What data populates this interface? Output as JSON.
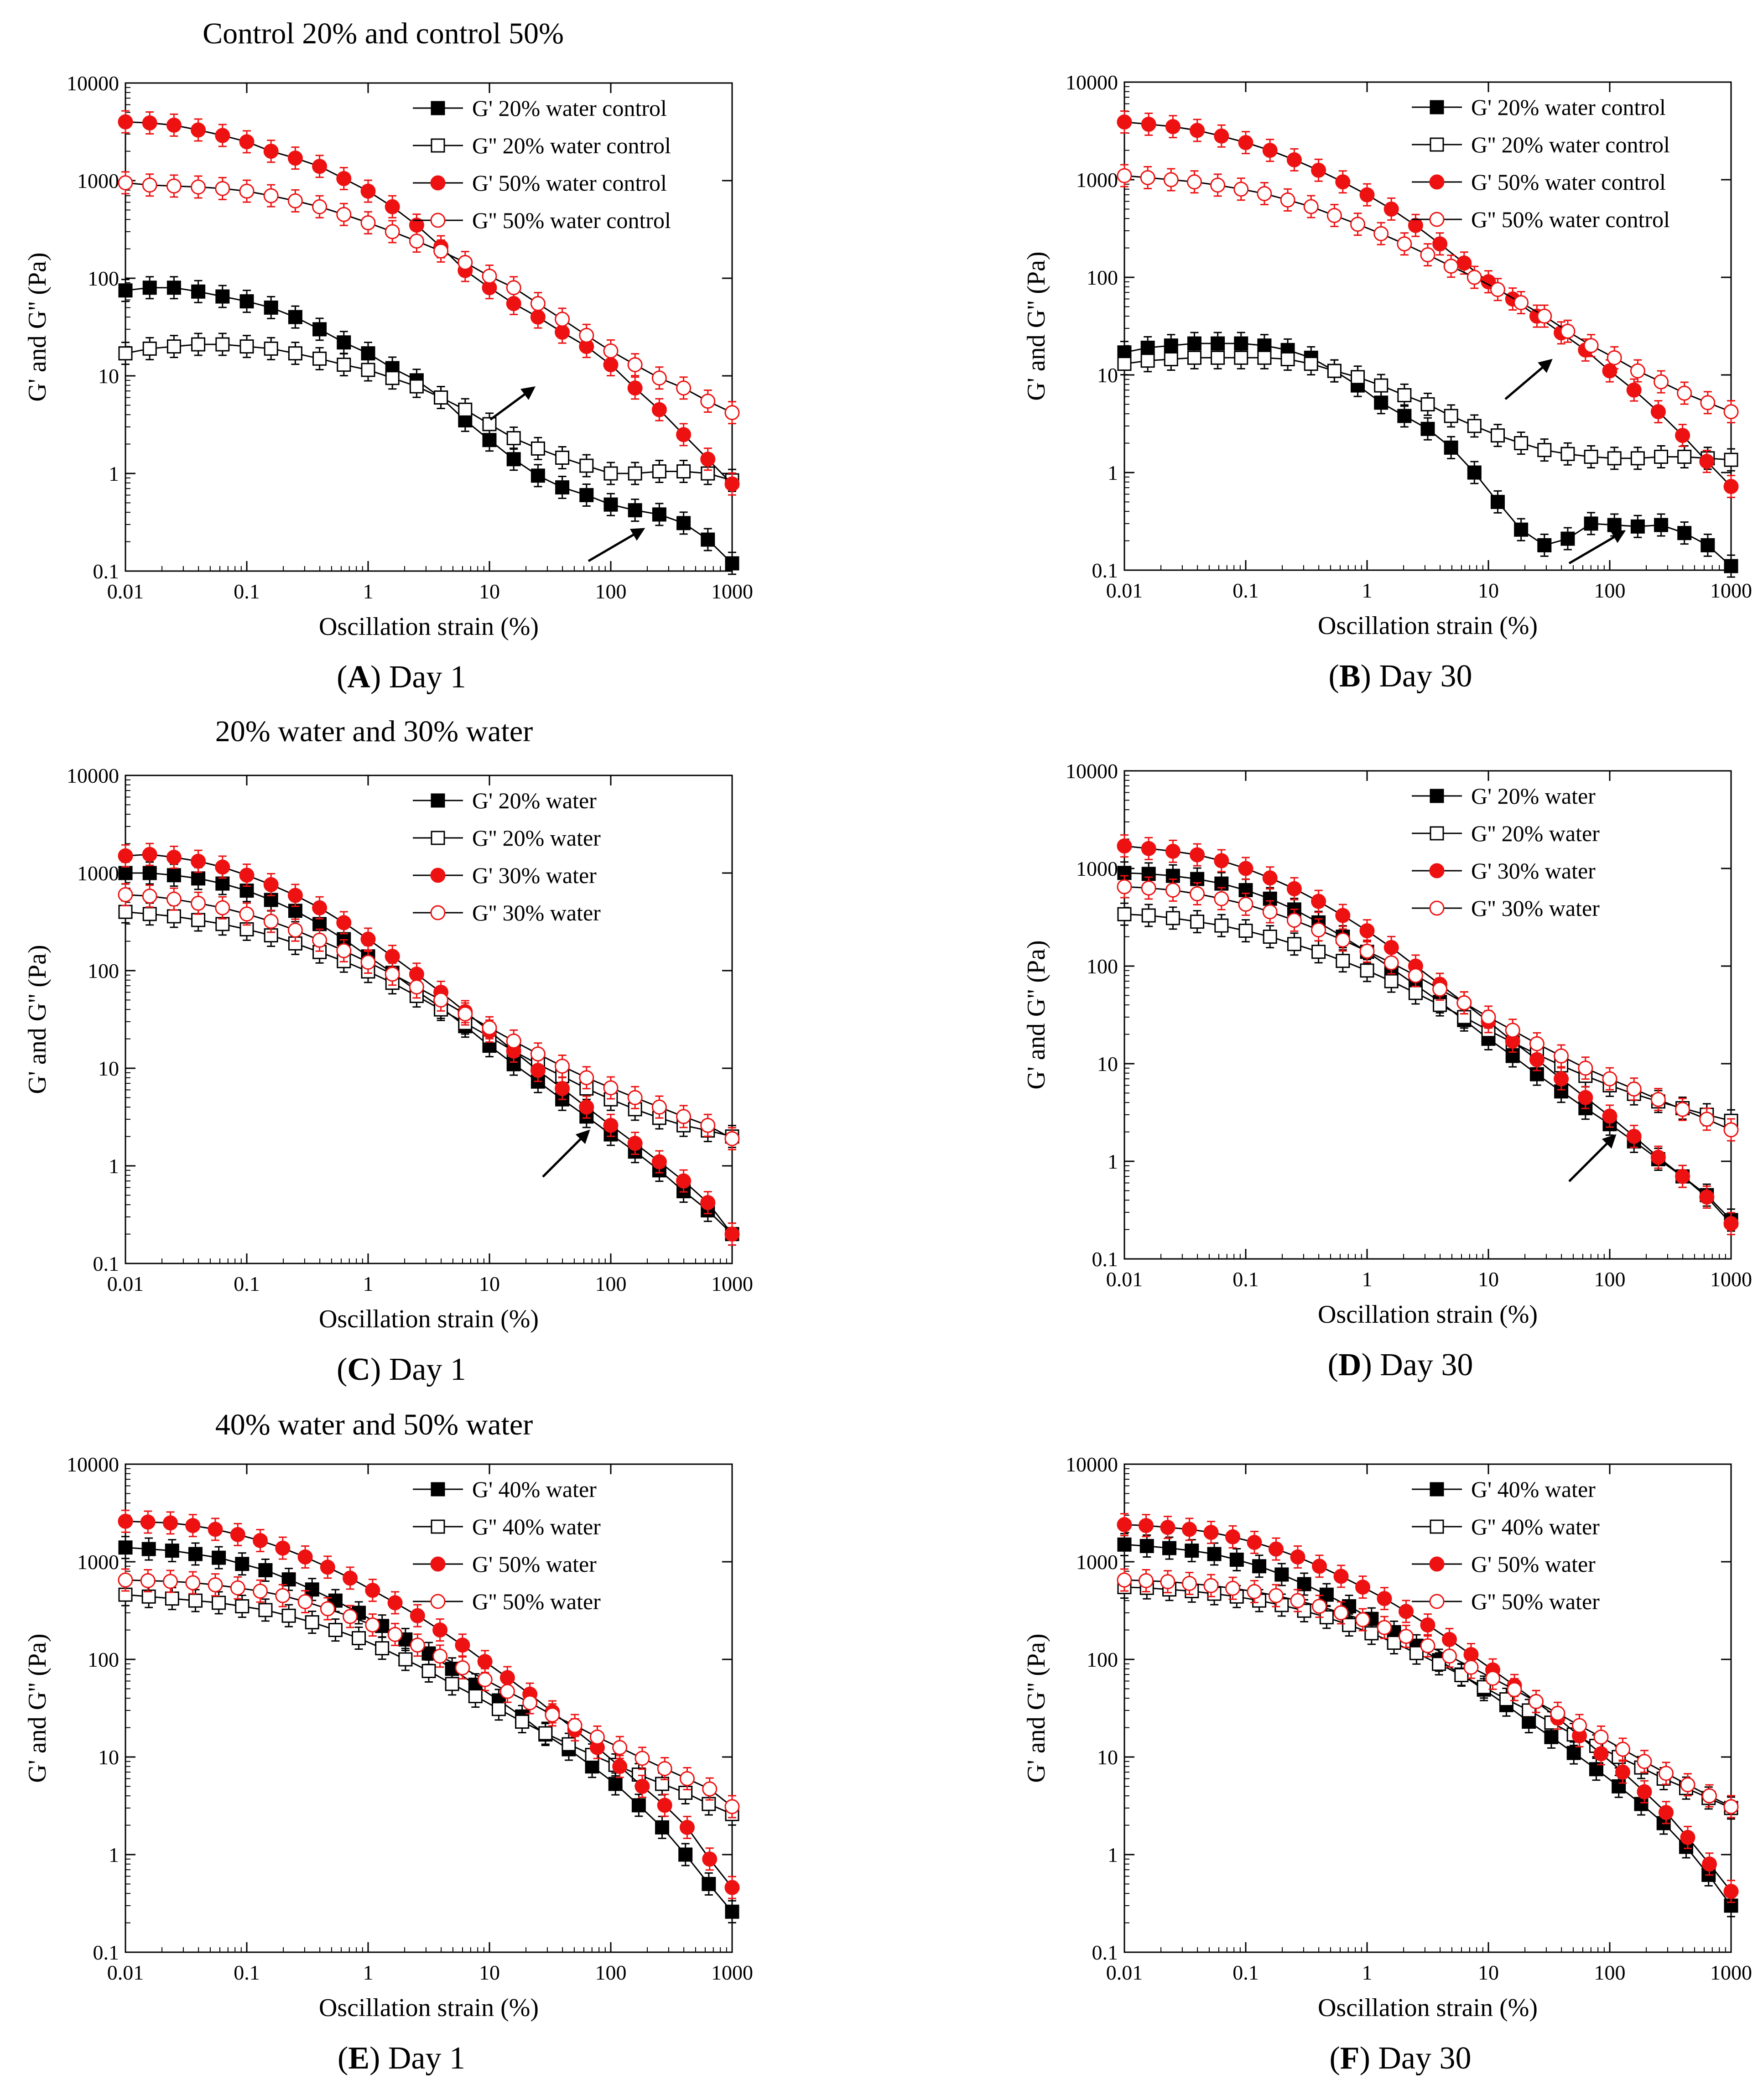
{
  "group_titles": [
    "Control 20% and control 50%",
    "20% water and 30% water",
    "40% water and 50% water"
  ],
  "colors": {
    "black": "#000000",
    "red": "#ee1111",
    "line": "#000000"
  },
  "chart_data": [
    {
      "type": "line",
      "panel_letter": "A",
      "panel_label": "Day 1",
      "xlabel": "Oscillation strain (%)",
      "ylabel": "G' and G'' (Pa)",
      "xscale": "log",
      "yscale": "log",
      "xlim": [
        0.01,
        1000
      ],
      "ylim": [
        0.1,
        10000
      ],
      "xticks": [
        "0.01",
        "0.1",
        "1",
        "10",
        "100",
        "1000"
      ],
      "yticks": [
        "0.1",
        "1",
        "10",
        "100",
        "1000",
        "10000"
      ],
      "legend_position": "top-right",
      "series": [
        {
          "name": "G' 20% water control",
          "color": "#000000",
          "marker": "square",
          "filled": true,
          "values": [
            75,
            80,
            80,
            73,
            65,
            58,
            50,
            40,
            30,
            22,
            17,
            12,
            9,
            6,
            3.5,
            2.2,
            1.4,
            0.95,
            0.72,
            0.6,
            0.48,
            0.42,
            0.38,
            0.31,
            0.21,
            0.12
          ]
        },
        {
          "name": "G'' 20% water control",
          "color": "#000000",
          "marker": "square",
          "filled": false,
          "values": [
            17,
            19,
            20,
            21,
            21,
            20,
            19,
            17,
            15,
            13,
            11.5,
            9.5,
            7.8,
            6,
            4.5,
            3.2,
            2.3,
            1.8,
            1.45,
            1.2,
            1.0,
            1.0,
            1.05,
            1.05,
            1.0,
            0.85
          ]
        },
        {
          "name": "G' 50% water control",
          "color": "#ee1111",
          "marker": "circle",
          "filled": true,
          "values": [
            4000,
            3900,
            3700,
            3300,
            2900,
            2500,
            2000,
            1700,
            1400,
            1050,
            780,
            540,
            350,
            210,
            120,
            80,
            55,
            40,
            28,
            20,
            13,
            7.5,
            4.5,
            2.5,
            1.4,
            0.78
          ]
        },
        {
          "name": "G'' 50% water control",
          "color": "#ee1111",
          "marker": "circle",
          "filled": false,
          "values": [
            950,
            900,
            880,
            860,
            830,
            780,
            700,
            620,
            540,
            450,
            370,
            300,
            240,
            190,
            145,
            105,
            80,
            55,
            38,
            26,
            18,
            13,
            9.5,
            7.5,
            5.5,
            4.2
          ]
        }
      ]
    },
    {
      "type": "line",
      "panel_letter": "B",
      "panel_label": "Day 30",
      "xlabel": "Oscillation strain (%)",
      "ylabel": "G' and G'' (Pa)",
      "xscale": "log",
      "yscale": "log",
      "xlim": [
        0.01,
        1000
      ],
      "ylim": [
        0.1,
        10000
      ],
      "xticks": [
        "0.01",
        "0.1",
        "1",
        "10",
        "100",
        "1000"
      ],
      "yticks": [
        "0.1",
        "1",
        "10",
        "100",
        "1000",
        "10000"
      ],
      "legend_position": "top-right",
      "series": [
        {
          "name": "G' 20% water control",
          "color": "#000000",
          "marker": "square",
          "filled": true,
          "values": [
            17,
            19,
            20,
            21,
            21,
            21,
            20,
            18,
            15,
            11,
            7.8,
            5.2,
            3.8,
            2.8,
            1.8,
            1.0,
            0.5,
            0.26,
            0.18,
            0.21,
            0.3,
            0.29,
            0.28,
            0.29,
            0.24,
            0.18,
            0.11
          ]
        },
        {
          "name": "G'' 20% water control",
          "color": "#000000",
          "marker": "square",
          "filled": false,
          "values": [
            13,
            14,
            14.5,
            15,
            15,
            15,
            15,
            14.5,
            13,
            11,
            9.5,
            7.8,
            6.2,
            5,
            3.8,
            3.0,
            2.4,
            2.0,
            1.7,
            1.55,
            1.45,
            1.4,
            1.4,
            1.45,
            1.45,
            1.4,
            1.35
          ]
        },
        {
          "name": "G' 50% water control",
          "color": "#ee1111",
          "marker": "circle",
          "filled": true,
          "values": [
            3900,
            3700,
            3500,
            3200,
            2800,
            2400,
            2000,
            1600,
            1250,
            950,
            700,
            500,
            340,
            220,
            140,
            90,
            60,
            40,
            27,
            18,
            11,
            7,
            4.2,
            2.4,
            1.3,
            0.72
          ]
        },
        {
          "name": "G'' 50% water control",
          "color": "#ee1111",
          "marker": "circle",
          "filled": false,
          "values": [
            1100,
            1050,
            1000,
            950,
            880,
            800,
            720,
            620,
            530,
            430,
            350,
            280,
            220,
            170,
            130,
            100,
            75,
            55,
            40,
            28,
            20,
            15,
            11,
            8.5,
            6.5,
            5.2,
            4.2
          ]
        }
      ]
    },
    {
      "type": "line",
      "panel_letter": "C",
      "panel_label": "Day 1",
      "xlabel": "Oscillation strain (%)",
      "ylabel": "G' and G'' (Pa)",
      "xscale": "log",
      "yscale": "log",
      "xlim": [
        0.01,
        1000
      ],
      "ylim": [
        0.1,
        10000
      ],
      "xticks": [
        "0.01",
        "0.1",
        "1",
        "10",
        "100",
        "1000"
      ],
      "yticks": [
        "0.1",
        "1",
        "10",
        "100",
        "1000",
        "10000"
      ],
      "legend_position": "top-right",
      "series": [
        {
          "name": "G' 20% water",
          "color": "#000000",
          "marker": "square",
          "filled": true,
          "values": [
            1000,
            1000,
            950,
            880,
            780,
            660,
            530,
            410,
            300,
            210,
            140,
            95,
            62,
            42,
            27,
            17,
            11,
            7.3,
            4.8,
            3.2,
            2.1,
            1.4,
            0.9,
            0.55,
            0.35,
            0.2
          ]
        },
        {
          "name": "G'' 20% water",
          "color": "#000000",
          "marker": "square",
          "filled": false,
          "values": [
            400,
            380,
            360,
            330,
            300,
            265,
            230,
            190,
            155,
            125,
            98,
            75,
            55,
            40,
            29,
            21,
            15,
            11,
            8.3,
            6.2,
            4.8,
            3.8,
            3.1,
            2.6,
            2.3,
            2.0
          ]
        },
        {
          "name": "G' 30% water",
          "color": "#ee1111",
          "marker": "circle",
          "filled": true,
          "values": [
            1500,
            1550,
            1450,
            1320,
            1150,
            950,
            760,
            590,
            440,
            310,
            210,
            140,
            92,
            60,
            38,
            24,
            15,
            9.5,
            6.2,
            4,
            2.6,
            1.7,
            1.1,
            0.7,
            0.42,
            0.2
          ]
        },
        {
          "name": "G'' 30% water",
          "color": "#ee1111",
          "marker": "circle",
          "filled": false,
          "values": [
            600,
            580,
            540,
            490,
            440,
            380,
            320,
            260,
            205,
            160,
            122,
            92,
            68,
            50,
            36,
            26,
            19,
            14,
            10.5,
            8,
            6.3,
            5,
            4,
            3.2,
            2.6,
            1.9
          ]
        }
      ]
    },
    {
      "type": "line",
      "panel_letter": "D",
      "panel_label": "Day 30",
      "xlabel": "Oscillation strain (%)",
      "ylabel": "G' and G'' (Pa)",
      "xscale": "log",
      "yscale": "log",
      "xlim": [
        0.01,
        1000
      ],
      "ylim": [
        0.1,
        10000
      ],
      "xticks": [
        "0.01",
        "0.1",
        "1",
        "10",
        "100",
        "1000"
      ],
      "yticks": [
        "0.1",
        "1",
        "10",
        "100",
        "1000",
        "10000"
      ],
      "legend_position": "top-right",
      "series": [
        {
          "name": "G' 20% water",
          "color": "#000000",
          "marker": "square",
          "filled": true,
          "values": [
            900,
            880,
            840,
            780,
            700,
            600,
            490,
            380,
            280,
            200,
            140,
            95,
            64,
            43,
            28,
            18,
            12,
            7.8,
            5.2,
            3.5,
            2.4,
            1.6,
            1.05,
            0.7,
            0.45,
            0.25
          ]
        },
        {
          "name": "G'' 20% water",
          "color": "#000000",
          "marker": "square",
          "filled": false,
          "values": [
            340,
            330,
            310,
            285,
            260,
            230,
            200,
            168,
            140,
            113,
            90,
            70,
            53,
            40,
            30,
            22,
            16.5,
            12.5,
            9.6,
            7.5,
            6,
            4.9,
            4.1,
            3.5,
            3.0,
            2.6
          ]
        },
        {
          "name": "G' 30% water",
          "color": "#ee1111",
          "marker": "circle",
          "filled": true,
          "values": [
            1700,
            1600,
            1500,
            1380,
            1200,
            1000,
            800,
            620,
            460,
            330,
            230,
            155,
            100,
            65,
            42,
            27,
            17,
            11,
            7,
            4.5,
            2.9,
            1.8,
            1.1,
            0.7,
            0.43,
            0.23
          ]
        },
        {
          "name": "G'' 30% water",
          "color": "#ee1111",
          "marker": "circle",
          "filled": false,
          "values": [
            650,
            630,
            600,
            550,
            490,
            430,
            360,
            295,
            235,
            185,
            142,
            108,
            80,
            58,
            42,
            30,
            22,
            16,
            12,
            9,
            7,
            5.5,
            4.3,
            3.4,
            2.7,
            2.1
          ]
        }
      ]
    },
    {
      "type": "line",
      "panel_letter": "E",
      "panel_label": "Day 1",
      "xlabel": "Oscillation strain (%)",
      "ylabel": "G' and G'' (Pa)",
      "xscale": "log",
      "yscale": "log",
      "xlim": [
        0.01,
        1000
      ],
      "ylim": [
        0.1,
        10000
      ],
      "xticks": [
        "0.01",
        "0.1",
        "1",
        "10",
        "100",
        "1000"
      ],
      "yticks": [
        "0.1",
        "1",
        "10",
        "100",
        "1000",
        "10000"
      ],
      "legend_position": "top-right",
      "series": [
        {
          "name": "G' 40% water",
          "color": "#000000",
          "marker": "square",
          "filled": true,
          "values": [
            1400,
            1350,
            1300,
            1200,
            1100,
            950,
            820,
            660,
            520,
            400,
            300,
            220,
            160,
            115,
            80,
            55,
            38,
            26,
            17,
            12,
            8,
            5.3,
            3.2,
            1.9,
            1.0,
            0.5,
            0.26
          ]
        },
        {
          "name": "G'' 40% water",
          "color": "#000000",
          "marker": "square",
          "filled": false,
          "values": [
            460,
            440,
            420,
            400,
            380,
            350,
            320,
            280,
            240,
            200,
            165,
            130,
            100,
            76,
            56,
            42,
            31,
            23,
            17.5,
            13.5,
            10.5,
            8.3,
            6.6,
            5.3,
            4.3,
            3.3,
            2.6
          ]
        },
        {
          "name": "G' 50% water",
          "color": "#ee1111",
          "marker": "circle",
          "filled": true,
          "values": [
            2600,
            2550,
            2500,
            2350,
            2150,
            1900,
            1650,
            1380,
            1120,
            880,
            680,
            510,
            380,
            280,
            200,
            140,
            95,
            65,
            44,
            29,
            19,
            12.5,
            8,
            5,
            3.2,
            1.9,
            0.9,
            0.46
          ]
        },
        {
          "name": "G'' 50% water",
          "color": "#ee1111",
          "marker": "circle",
          "filled": false,
          "values": [
            650,
            640,
            630,
            610,
            580,
            540,
            500,
            450,
            390,
            330,
            275,
            225,
            180,
            140,
            108,
            82,
            62,
            47,
            36,
            27,
            21,
            16,
            12.5,
            9.7,
            7.6,
            6,
            4.7,
            3.1
          ]
        }
      ]
    },
    {
      "type": "line",
      "panel_letter": "F",
      "panel_label": "Day 30",
      "xlabel": "Oscillation strain (%)",
      "ylabel": "G' and G'' (Pa)",
      "xscale": "log",
      "yscale": "log",
      "xlim": [
        0.01,
        1000
      ],
      "ylim": [
        0.1,
        10000
      ],
      "xticks": [
        "0.01",
        "0.1",
        "1",
        "10",
        "100",
        "1000"
      ],
      "yticks": [
        "0.1",
        "1",
        "10",
        "100",
        "1000",
        "10000"
      ],
      "legend_position": "top-right",
      "series": [
        {
          "name": "G' 40% water",
          "color": "#000000",
          "marker": "square",
          "filled": true,
          "values": [
            1500,
            1450,
            1380,
            1300,
            1200,
            1050,
            900,
            740,
            590,
            460,
            350,
            260,
            190,
            138,
            98,
            70,
            49,
            34,
            23,
            16,
            11,
            7.5,
            5,
            3.3,
            2.1,
            1.2,
            0.62,
            0.3
          ]
        },
        {
          "name": "G'' 40% water",
          "color": "#000000",
          "marker": "square",
          "filled": false,
          "values": [
            550,
            540,
            520,
            500,
            470,
            440,
            400,
            360,
            315,
            270,
            225,
            185,
            148,
            116,
            90,
            69,
            52,
            39,
            30,
            22.5,
            17,
            13,
            10,
            7.8,
            6,
            4.8,
            3.8,
            3.0
          ]
        },
        {
          "name": "G' 50% water",
          "color": "#ee1111",
          "marker": "circle",
          "filled": true,
          "values": [
            2400,
            2350,
            2250,
            2150,
            2000,
            1800,
            1580,
            1350,
            1120,
            900,
            710,
            550,
            420,
            310,
            225,
            160,
            112,
            78,
            54,
            37,
            25,
            16.5,
            10.8,
            7,
            4.4,
            2.7,
            1.5,
            0.8,
            0.42
          ]
        },
        {
          "name": "G'' 50% water",
          "color": "#ee1111",
          "marker": "circle",
          "filled": false,
          "values": [
            650,
            640,
            625,
            600,
            570,
            535,
            495,
            450,
            400,
            350,
            300,
            255,
            212,
            172,
            138,
            108,
            83,
            64,
            49,
            37,
            28,
            21,
            16,
            12,
            9,
            6.8,
            5.2,
            4,
            3.1
          ]
        }
      ]
    }
  ]
}
